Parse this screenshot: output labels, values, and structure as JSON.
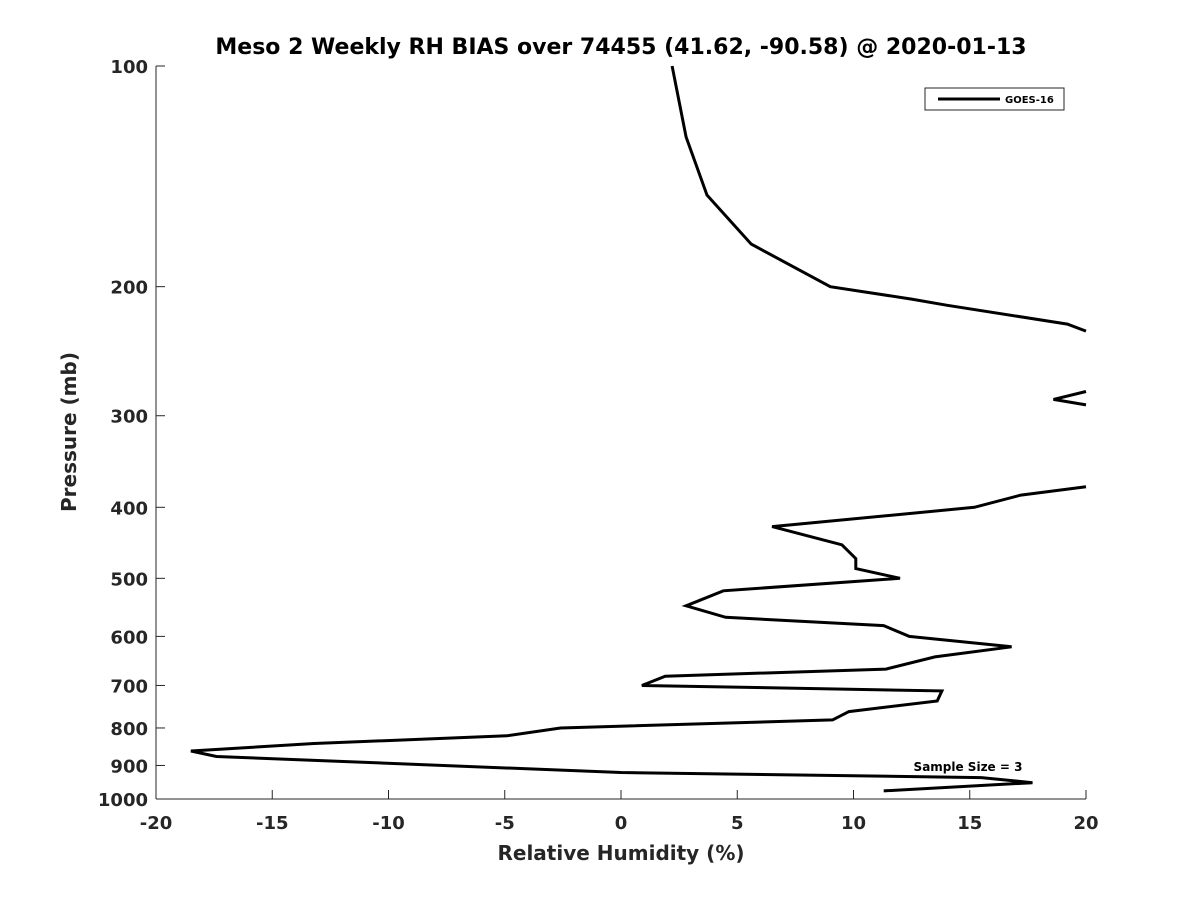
{
  "chart_data": {
    "type": "line",
    "title": "Meso 2 Weekly RH BIAS over 74455 (41.62, -90.58) @ 2020-01-13",
    "xlabel": "Relative Humidity (%)",
    "ylabel": "Pressure (mb)",
    "xlim": [
      -20,
      20
    ],
    "ylim": [
      100,
      1000
    ],
    "y_scale": "log",
    "y_reversed": true,
    "grid": false,
    "legend_position": "top-right",
    "xticks": [
      "-20",
      "-15",
      "-10",
      "-5",
      "0",
      "5",
      "10",
      "15",
      "20"
    ],
    "yticks": [
      "100",
      "200",
      "300",
      "400",
      "500",
      "600",
      "700",
      "800",
      "900",
      "1000"
    ],
    "annotation": "Sample Size = 3",
    "series": [
      {
        "name": "GOES-16",
        "color": "#000000",
        "segments": [
          [
            [
              2.2,
              100
            ],
            [
              2.8,
              125
            ],
            [
              3.7,
              150
            ],
            [
              5.6,
              175
            ],
            [
              9.0,
              200
            ],
            [
              12.5,
              208
            ],
            [
              14.0,
              212
            ],
            [
              19.2,
              225
            ],
            [
              20.0,
              230
            ]
          ],
          [
            [
              20.0,
              278
            ],
            [
              18.6,
              285
            ],
            [
              20.0,
              290
            ]
          ],
          [
            [
              20.0,
              375
            ],
            [
              17.2,
              385
            ],
            [
              15.2,
              400
            ],
            [
              6.5,
              425
            ],
            [
              9.5,
              450
            ],
            [
              10.1,
              470
            ],
            [
              10.1,
              485
            ],
            [
              12.0,
              500
            ],
            [
              4.4,
              520
            ],
            [
              2.8,
              545
            ],
            [
              4.5,
              565
            ],
            [
              11.3,
              580
            ],
            [
              12.4,
              600
            ],
            [
              16.8,
              620
            ],
            [
              13.5,
              640
            ],
            [
              11.4,
              665
            ],
            [
              1.9,
              680
            ],
            [
              0.9,
              700
            ],
            [
              13.8,
              712
            ],
            [
              13.6,
              735
            ],
            [
              9.8,
              760
            ],
            [
              9.1,
              780
            ],
            [
              -2.6,
              800
            ],
            [
              -4.9,
              820
            ],
            [
              -13.2,
              840
            ],
            [
              -18.5,
              860
            ],
            [
              -17.4,
              875
            ],
            [
              0,
              920
            ],
            [
              15.5,
              935
            ],
            [
              17.7,
              950
            ],
            [
              11.3,
              975
            ]
          ]
        ]
      }
    ]
  }
}
